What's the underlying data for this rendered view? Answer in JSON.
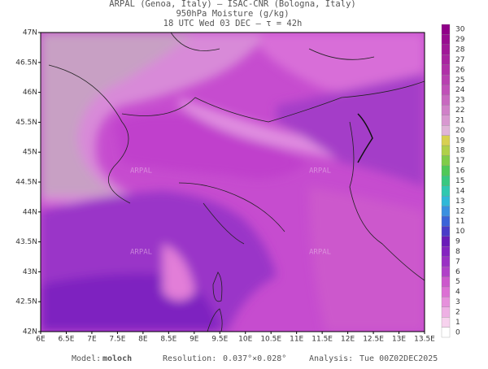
{
  "header": {
    "line1": "ARPAL (Genoa, Italy)  –  ISAC-CNR (Bologna, Italy)",
    "line2": "950hPa Moisture (g/kg)",
    "line3": "18 UTC Wed 03 DEC  –  τ = 42h"
  },
  "map": {
    "lat_labels": [
      "47N",
      "46.5N",
      "46N",
      "45.5N",
      "45N",
      "44.5N",
      "44N",
      "43.5N",
      "43N",
      "42.5N",
      "42N"
    ],
    "lon_labels": [
      "6E",
      "6.5E",
      "7E",
      "7.5E",
      "8E",
      "8.5E",
      "9E",
      "9.5E",
      "10E",
      "10.5E",
      "11E",
      "11.5E",
      "12E",
      "12.5E",
      "13E",
      "13.5E"
    ],
    "watermark": "ARPAL"
  },
  "colorbar": {
    "labels": [
      "0",
      "1",
      "2",
      "3",
      "4",
      "5",
      "6",
      "7",
      "8",
      "9",
      "10",
      "11",
      "12",
      "13",
      "14",
      "15",
      "16",
      "17",
      "18",
      "19",
      "20",
      "21",
      "22",
      "23",
      "24",
      "25",
      "26",
      "27",
      "28",
      "29",
      "30"
    ],
    "colors": [
      "#ffffff",
      "#f7d2ee",
      "#eeb0e4",
      "#e690dc",
      "#dc70d4",
      "#cc58cc",
      "#b040c8",
      "#9a30c4",
      "#8424c0",
      "#6a1cb8",
      "#4a3cc8",
      "#3a64d8",
      "#3a90e0",
      "#30b8d8",
      "#30c8b0",
      "#38c880",
      "#50c858",
      "#80cc48",
      "#b0d048",
      "#d8d050",
      "#e0b4d8",
      "#d898d0",
      "#d080c8",
      "#c868c0",
      "#c050b8",
      "#b840b0",
      "#b030a8",
      "#a824a0",
      "#a01898",
      "#980c90",
      "#900088"
    ]
  },
  "footer": {
    "model_label": "Model:",
    "model": "moloch",
    "resolution_label": "Resolution:",
    "resolution": "0.037°×0.028°",
    "analysis_label": "Analysis:",
    "analysis": "Tue 00Z02DEC2025"
  }
}
